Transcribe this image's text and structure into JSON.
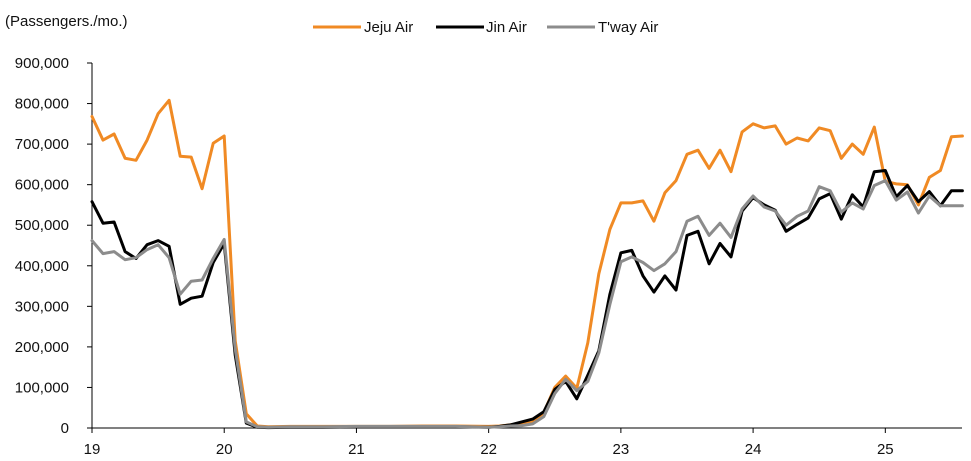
{
  "chart_data": {
    "type": "line",
    "unit_label": "(Passengers./mo.)",
    "title": "",
    "xlabel": "",
    "ylabel": "",
    "y_ticks": [
      "900,000",
      "800,000",
      "700,000",
      "600,000",
      "500,000",
      "400,000",
      "300,000",
      "200,000",
      "100,000",
      "0"
    ],
    "y_tick_values": [
      900000,
      800000,
      700000,
      600000,
      500000,
      400000,
      300000,
      200000,
      100000,
      0
    ],
    "ylim": [
      0,
      900000
    ],
    "x_ticks": [
      "19",
      "20",
      "21",
      "22",
      "23",
      "24",
      "25"
    ],
    "x_tick_values": [
      2019,
      2020,
      2021,
      2022,
      2023,
      2024,
      2025
    ],
    "xlim": [
      2019,
      2025.58
    ],
    "grid": false,
    "legend_position": "top",
    "series": [
      {
        "name": "Jeju Air",
        "color": "#F08A24",
        "x": [
          2019.0,
          2019.083,
          2019.167,
          2019.25,
          2019.333,
          2019.417,
          2019.5,
          2019.583,
          2019.667,
          2019.75,
          2019.833,
          2019.917,
          2020.0,
          2020.083,
          2020.167,
          2020.25,
          2020.333,
          2020.5,
          2020.75,
          2021.0,
          2021.25,
          2021.5,
          2021.75,
          2022.0,
          2022.083,
          2022.167,
          2022.25,
          2022.333,
          2022.417,
          2022.5,
          2022.583,
          2022.667,
          2022.75,
          2022.833,
          2022.917,
          2023.0,
          2023.083,
          2023.167,
          2023.25,
          2023.333,
          2023.417,
          2023.5,
          2023.583,
          2023.667,
          2023.75,
          2023.833,
          2023.917,
          2024.0,
          2024.083,
          2024.167,
          2024.25,
          2024.333,
          2024.417,
          2024.5,
          2024.583,
          2024.667,
          2024.75,
          2024.833,
          2024.917,
          2025.0,
          2025.083,
          2025.167,
          2025.25,
          2025.333,
          2025.417,
          2025.5,
          2025.583
        ],
        "values": [
          768000,
          710000,
          725000,
          665000,
          660000,
          710000,
          775000,
          808000,
          670000,
          668000,
          590000,
          702000,
          720000,
          215000,
          35000,
          5000,
          3000,
          4000,
          4000,
          4000,
          4000,
          5000,
          5000,
          4000,
          5000,
          8000,
          10000,
          14000,
          38000,
          100000,
          128000,
          98000,
          210000,
          380000,
          490000,
          555000,
          555000,
          560000,
          510000,
          580000,
          610000,
          675000,
          685000,
          640000,
          685000,
          632000,
          730000,
          750000,
          740000,
          745000,
          700000,
          715000,
          708000,
          740000,
          733000,
          665000,
          700000,
          675000,
          742000,
          608000,
          602000,
          600000,
          550000,
          618000,
          635000,
          718000,
          720000
        ]
      },
      {
        "name": "Jin Air",
        "color": "#000000",
        "x": [
          2019.0,
          2019.083,
          2019.167,
          2019.25,
          2019.333,
          2019.417,
          2019.5,
          2019.583,
          2019.667,
          2019.75,
          2019.833,
          2019.917,
          2020.0,
          2020.083,
          2020.167,
          2020.25,
          2020.333,
          2020.5,
          2020.75,
          2021.0,
          2021.25,
          2021.5,
          2021.75,
          2022.0,
          2022.083,
          2022.167,
          2022.25,
          2022.333,
          2022.417,
          2022.5,
          2022.583,
          2022.667,
          2022.75,
          2022.833,
          2022.917,
          2023.0,
          2023.083,
          2023.167,
          2023.25,
          2023.333,
          2023.417,
          2023.5,
          2023.583,
          2023.667,
          2023.75,
          2023.833,
          2023.917,
          2024.0,
          2024.083,
          2024.167,
          2024.25,
          2024.333,
          2024.417,
          2024.5,
          2024.583,
          2024.667,
          2024.75,
          2024.833,
          2024.917,
          2025.0,
          2025.083,
          2025.167,
          2025.25,
          2025.333,
          2025.417,
          2025.5,
          2025.583
        ],
        "values": [
          558000,
          505000,
          508000,
          435000,
          418000,
          452000,
          462000,
          448000,
          305000,
          320000,
          325000,
          408000,
          455000,
          180000,
          12000,
          2000,
          1000,
          2000,
          2000,
          3000,
          3000,
          3000,
          3000,
          2000,
          4000,
          8000,
          15000,
          22000,
          40000,
          95000,
          115000,
          72000,
          130000,
          190000,
          330000,
          432000,
          438000,
          375000,
          335000,
          375000,
          340000,
          475000,
          485000,
          405000,
          455000,
          422000,
          535000,
          568000,
          550000,
          537000,
          485000,
          502000,
          518000,
          565000,
          578000,
          515000,
          575000,
          545000,
          632000,
          635000,
          570000,
          598000,
          558000,
          583000,
          548000,
          585000,
          585000
        ]
      },
      {
        "name": "T'way Air",
        "color": "#8C8C8C",
        "x": [
          2019.0,
          2019.083,
          2019.167,
          2019.25,
          2019.333,
          2019.417,
          2019.5,
          2019.583,
          2019.667,
          2019.75,
          2019.833,
          2019.917,
          2020.0,
          2020.083,
          2020.167,
          2020.25,
          2020.333,
          2020.5,
          2020.75,
          2021.0,
          2021.25,
          2021.5,
          2021.75,
          2022.0,
          2022.083,
          2022.167,
          2022.25,
          2022.333,
          2022.417,
          2022.5,
          2022.583,
          2022.667,
          2022.75,
          2022.833,
          2022.917,
          2023.0,
          2023.083,
          2023.167,
          2023.25,
          2023.333,
          2023.417,
          2023.5,
          2023.583,
          2023.667,
          2023.75,
          2023.833,
          2023.917,
          2024.0,
          2024.083,
          2024.167,
          2024.25,
          2024.333,
          2024.417,
          2024.5,
          2024.583,
          2024.667,
          2024.75,
          2024.833,
          2024.917,
          2025.0,
          2025.083,
          2025.167,
          2025.25,
          2025.333,
          2025.417,
          2025.5,
          2025.583
        ],
        "values": [
          462000,
          430000,
          435000,
          415000,
          420000,
          440000,
          452000,
          420000,
          330000,
          362000,
          365000,
          418000,
          465000,
          195000,
          15000,
          3000,
          2000,
          3000,
          3000,
          4000,
          4000,
          4000,
          4000,
          2000,
          3000,
          5000,
          6000,
          10000,
          28000,
          85000,
          120000,
          92000,
          115000,
          185000,
          305000,
          410000,
          422000,
          408000,
          388000,
          405000,
          435000,
          510000,
          522000,
          475000,
          505000,
          470000,
          540000,
          572000,
          545000,
          535000,
          500000,
          522000,
          535000,
          595000,
          585000,
          532000,
          555000,
          540000,
          598000,
          610000,
          562000,
          582000,
          530000,
          572000,
          548000,
          548000,
          548000
        ]
      }
    ]
  }
}
